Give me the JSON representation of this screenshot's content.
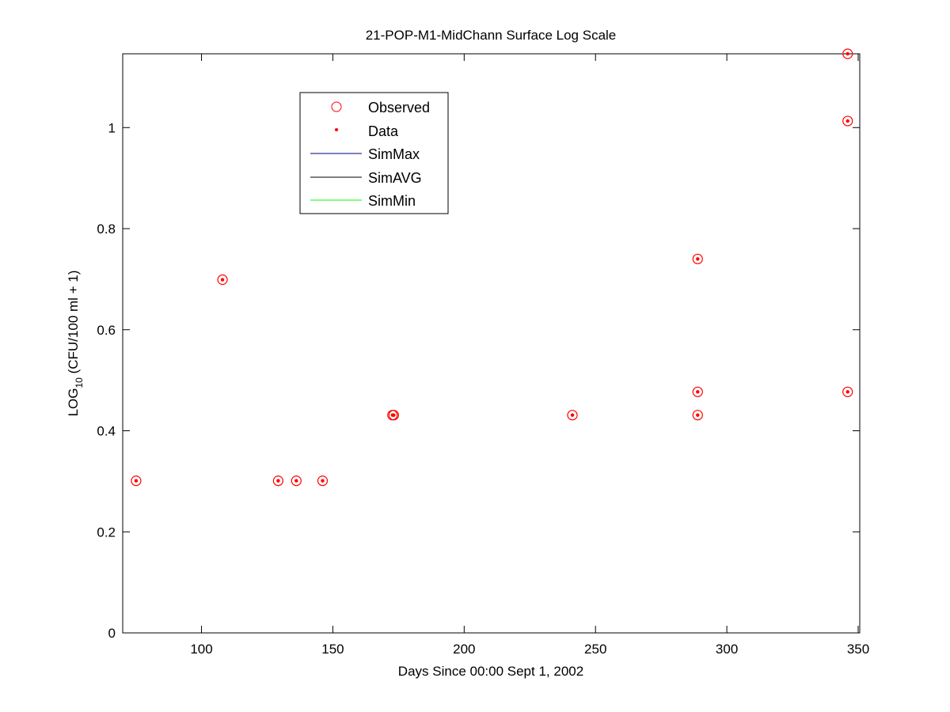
{
  "chart_data": {
    "type": "scatter",
    "title": "21-POP-M1-MidChann Surface Log Scale",
    "xlabel": "Days Since 00:00 Sept 1, 2002",
    "ylabel_main": "LOG",
    "ylabel_sub": "10",
    "ylabel_rest": " (CFU/100 ml + 1)",
    "xlim": [
      70,
      350.6
    ],
    "ylim": [
      0,
      1.146
    ],
    "xticks": [
      100,
      150,
      200,
      250,
      300,
      350
    ],
    "yticks": [
      0,
      0.2,
      0.4,
      0.6,
      0.8,
      1
    ],
    "ytick_labels": [
      "0",
      "0.2",
      "0.4",
      "0.6",
      "0.8",
      "1"
    ],
    "grid": false,
    "legend_position": "upper-left-inside",
    "legend": [
      "Observed",
      "Data",
      "SimMax",
      "SimAVG",
      "SimMin"
    ],
    "colors": {
      "observed": "#ff0000",
      "data": "#ff0000",
      "simmax": "#000080",
      "simavg": "#000000",
      "simmin": "#00ff00"
    },
    "series": [
      {
        "name": "Observed",
        "marker": "circle",
        "x": [
          75.1,
          108.0,
          129.2,
          136.1,
          146.1,
          172.7,
          173.2,
          241.2,
          288.9,
          288.9,
          288.9,
          346.0,
          346.0,
          346.0
        ],
        "y": [
          0.301,
          0.699,
          0.301,
          0.301,
          0.301,
          0.431,
          0.431,
          0.431,
          0.74,
          0.477,
          0.431,
          1.146,
          1.013,
          0.477
        ]
      },
      {
        "name": "Data",
        "marker": "dot",
        "x": [
          75.1,
          108.0,
          129.2,
          136.1,
          146.1,
          172.7,
          173.2,
          241.2,
          288.9,
          288.9,
          288.9,
          346.0,
          346.0,
          346.0
        ],
        "y": [
          0.301,
          0.699,
          0.301,
          0.301,
          0.301,
          0.431,
          0.431,
          0.431,
          0.74,
          0.477,
          0.431,
          1.146,
          1.013,
          0.477
        ]
      },
      {
        "name": "SimMax",
        "x": [],
        "y": []
      },
      {
        "name": "SimAVG",
        "x": [],
        "y": []
      },
      {
        "name": "SimMin",
        "x": [],
        "y": []
      }
    ]
  }
}
